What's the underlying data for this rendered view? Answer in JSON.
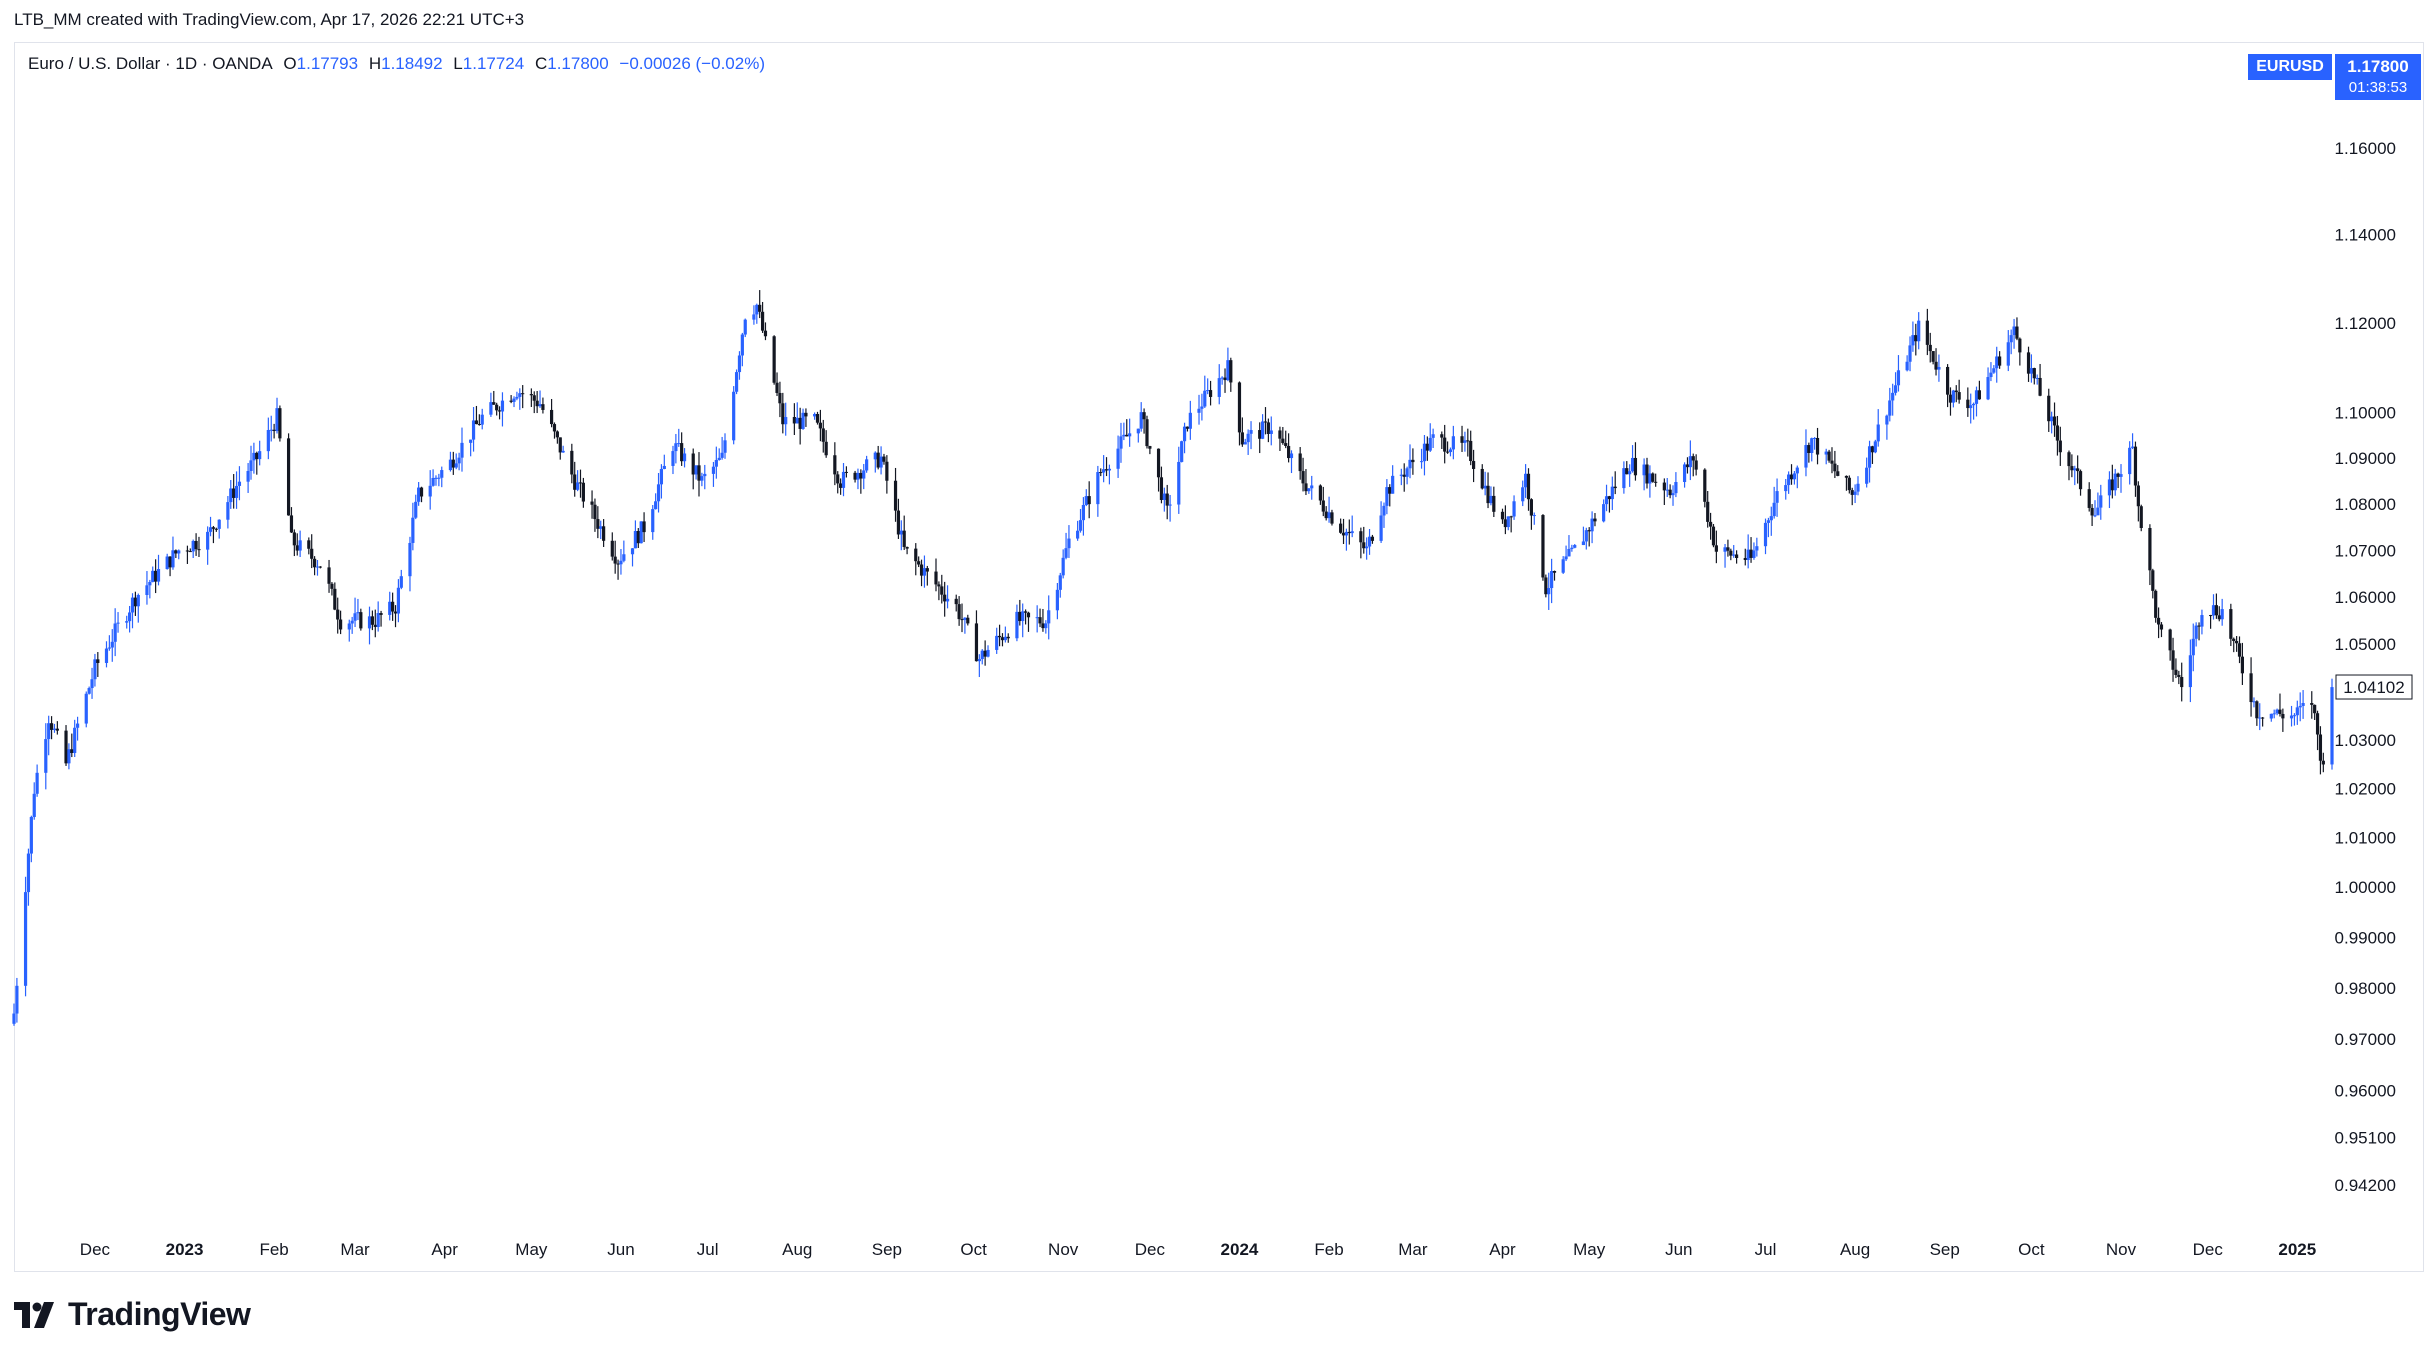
{
  "credit": "LTB_MM created with TradingView.com, Apr 17, 2026 22:21 UTC+3",
  "legend": {
    "title": "Euro / U.S. Dollar · 1D · OANDA",
    "o_label": "O",
    "o": "1.17793",
    "h_label": "H",
    "h": "1.18492",
    "l_label": "L",
    "l": "1.17724",
    "c_label": "C",
    "c": "1.17800",
    "change": "−0.00026 (−0.02%)"
  },
  "badge": {
    "symbol": "EURUSD",
    "price": "1.17800",
    "countdown": "01:38:53"
  },
  "last_price_label": "1.04102",
  "logo": {
    "text": "TradingView"
  },
  "colors": {
    "up": "#2962ff",
    "down": "#131722",
    "accent": "#2962ff",
    "grid": "#e0e3eb",
    "text": "#131722"
  },
  "chart_data": {
    "type": "candlestick",
    "symbol": "EURUSD",
    "interval": "1D",
    "source": "OANDA",
    "y_scale": "log",
    "ylim": [
      0.935,
      1.175
    ],
    "y_ticks": [
      "1.16000",
      "1.14000",
      "1.12000",
      "1.10000",
      "1.09000",
      "1.08000",
      "1.07000",
      "1.06000",
      "1.05000",
      "1.03000",
      "1.02000",
      "1.01000",
      "1.00000",
      "0.99000",
      "0.98000",
      "0.97000",
      "0.96000",
      "0.95100",
      "0.94200"
    ],
    "x_range": [
      "2022-11-03",
      "2025-01-13"
    ],
    "x_ticks": [
      {
        "date": "2022-12-01",
        "label": "Dec",
        "bold": false
      },
      {
        "date": "2023-01-01",
        "label": "2023",
        "bold": true
      },
      {
        "date": "2023-02-01",
        "label": "Feb",
        "bold": false
      },
      {
        "date": "2023-03-01",
        "label": "Mar",
        "bold": false
      },
      {
        "date": "2023-04-01",
        "label": "Apr",
        "bold": false
      },
      {
        "date": "2023-05-01",
        "label": "May",
        "bold": false
      },
      {
        "date": "2023-06-01",
        "label": "Jun",
        "bold": false
      },
      {
        "date": "2023-07-01",
        "label": "Jul",
        "bold": false
      },
      {
        "date": "2023-08-01",
        "label": "Aug",
        "bold": false
      },
      {
        "date": "2023-09-01",
        "label": "Sep",
        "bold": false
      },
      {
        "date": "2023-10-01",
        "label": "Oct",
        "bold": false
      },
      {
        "date": "2023-11-01",
        "label": "Nov",
        "bold": false
      },
      {
        "date": "2023-12-01",
        "label": "Dec",
        "bold": false
      },
      {
        "date": "2024-01-01",
        "label": "2024",
        "bold": true
      },
      {
        "date": "2024-02-01",
        "label": "Feb",
        "bold": false
      },
      {
        "date": "2024-03-01",
        "label": "Mar",
        "bold": false
      },
      {
        "date": "2024-04-01",
        "label": "Apr",
        "bold": false
      },
      {
        "date": "2024-05-01",
        "label": "May",
        "bold": false
      },
      {
        "date": "2024-06-01",
        "label": "Jun",
        "bold": false
      },
      {
        "date": "2024-07-01",
        "label": "Jul",
        "bold": false
      },
      {
        "date": "2024-08-01",
        "label": "Aug",
        "bold": false
      },
      {
        "date": "2024-09-01",
        "label": "Sep",
        "bold": false
      },
      {
        "date": "2024-10-01",
        "label": "Oct",
        "bold": false
      },
      {
        "date": "2024-11-01",
        "label": "Nov",
        "bold": false
      },
      {
        "date": "2024-12-01",
        "label": "Dec",
        "bold": false
      },
      {
        "date": "2025-01-01",
        "label": "2025",
        "bold": true
      }
    ],
    "close_path": [
      [
        "2022-11-03",
        0.975
      ],
      [
        "2022-11-10",
        1.02
      ],
      [
        "2022-11-15",
        1.035
      ],
      [
        "2022-11-21",
        1.025
      ],
      [
        "2022-12-01",
        1.045
      ],
      [
        "2022-12-15",
        1.06
      ],
      [
        "2022-12-30",
        1.07
      ],
      [
        "2023-01-09",
        1.073
      ],
      [
        "2023-01-20",
        1.085
      ],
      [
        "2023-01-26",
        1.09
      ],
      [
        "2023-02-02",
        1.099
      ],
      [
        "2023-02-07",
        1.072
      ],
      [
        "2023-02-17",
        1.067
      ],
      [
        "2023-02-24",
        1.055
      ],
      [
        "2023-03-08",
        1.055
      ],
      [
        "2023-03-15",
        1.058
      ],
      [
        "2023-03-23",
        1.082
      ],
      [
        "2023-04-03",
        1.089
      ],
      [
        "2023-04-14",
        1.099
      ],
      [
        "2023-04-26",
        1.105
      ],
      [
        "2023-05-04",
        1.102
      ],
      [
        "2023-05-16",
        1.085
      ],
      [
        "2023-05-31",
        1.068
      ],
      [
        "2023-06-09",
        1.075
      ],
      [
        "2023-06-19",
        1.093
      ],
      [
        "2023-06-29",
        1.085
      ],
      [
        "2023-07-06",
        1.09
      ],
      [
        "2023-07-14",
        1.122
      ],
      [
        "2023-07-18",
        1.124
      ],
      [
        "2023-07-27",
        1.098
      ],
      [
        "2023-08-07",
        1.098
      ],
      [
        "2023-08-16",
        1.085
      ],
      [
        "2023-08-30",
        1.09
      ],
      [
        "2023-09-07",
        1.07
      ],
      [
        "2023-09-25",
        1.058
      ],
      [
        "2023-10-03",
        1.047
      ],
      [
        "2023-10-16",
        1.055
      ],
      [
        "2023-10-26",
        1.055
      ],
      [
        "2023-11-03",
        1.072
      ],
      [
        "2023-11-14",
        1.087
      ],
      [
        "2023-11-28",
        1.099
      ],
      [
        "2023-12-07",
        1.078
      ],
      [
        "2023-12-14",
        1.098
      ],
      [
        "2023-12-28",
        1.11
      ],
      [
        "2024-01-02",
        1.094
      ],
      [
        "2024-01-12",
        1.097
      ],
      [
        "2024-01-23",
        1.085
      ],
      [
        "2024-02-05",
        1.075
      ],
      [
        "2024-02-14",
        1.07
      ],
      [
        "2024-02-21",
        1.083
      ],
      [
        "2024-03-08",
        1.094
      ],
      [
        "2024-03-20",
        1.092
      ],
      [
        "2024-04-01",
        1.075
      ],
      [
        "2024-04-09",
        1.086
      ],
      [
        "2024-04-16",
        1.062
      ],
      [
        "2024-04-26",
        1.07
      ],
      [
        "2024-05-15",
        1.089
      ],
      [
        "2024-05-29",
        1.083
      ],
      [
        "2024-06-06",
        1.09
      ],
      [
        "2024-06-14",
        1.07
      ],
      [
        "2024-06-26",
        1.068
      ],
      [
        "2024-07-05",
        1.082
      ],
      [
        "2024-07-17",
        1.094
      ],
      [
        "2024-07-31",
        1.082
      ],
      [
        "2024-08-07",
        1.093
      ],
      [
        "2024-08-23",
        1.119
      ],
      [
        "2024-09-03",
        1.104
      ],
      [
        "2024-09-11",
        1.102
      ],
      [
        "2024-09-25",
        1.118
      ],
      [
        "2024-10-01",
        1.109
      ],
      [
        "2024-10-10",
        1.094
      ],
      [
        "2024-10-23",
        1.078
      ],
      [
        "2024-11-05",
        1.092
      ],
      [
        "2024-11-07",
        1.08
      ],
      [
        "2024-11-14",
        1.053
      ],
      [
        "2024-11-22",
        1.041
      ],
      [
        "2024-11-29",
        1.058
      ],
      [
        "2024-12-06",
        1.057
      ],
      [
        "2024-12-18",
        1.036
      ],
      [
        "2024-12-31",
        1.035
      ],
      [
        "2025-01-06",
        1.038
      ],
      [
        "2025-01-10",
        1.024
      ],
      [
        "2025-01-13",
        1.041
      ]
    ]
  }
}
